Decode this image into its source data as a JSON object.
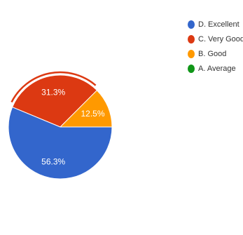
{
  "chart_data": {
    "type": "pie",
    "categories": [
      "D. Excellent",
      "C. Very Good",
      "B. Good",
      "A. Average"
    ],
    "values": [
      56.3,
      31.3,
      12.5,
      0
    ],
    "value_labels": [
      "56.3%",
      "31.3%",
      "12.5%",
      ""
    ],
    "colors": [
      "#3366cc",
      "#dc3912",
      "#ff9900",
      "#109618"
    ],
    "start_category": "B. Good",
    "direction": "counterclockwise",
    "highlighted_category": "C. Very Good",
    "legend": "right"
  }
}
